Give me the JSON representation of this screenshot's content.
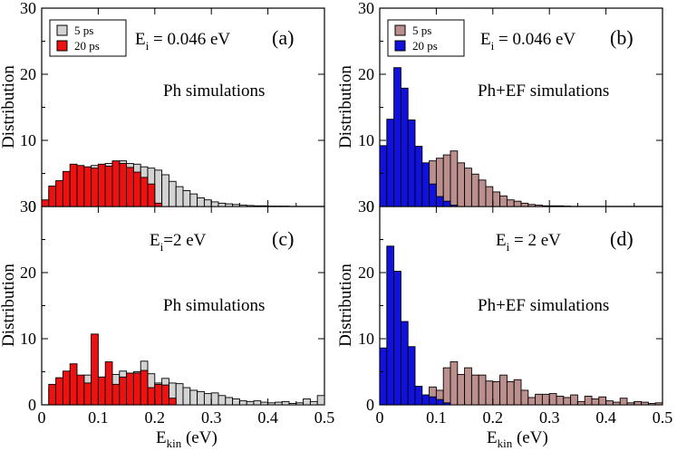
{
  "figure": {
    "ylabel": "Distribution",
    "xlabel_main": "E",
    "xlabel_sub": "kin",
    "xlabel_unit": " (eV)",
    "xticks": [
      "0",
      "0.1",
      "0.2",
      "0.3",
      "0.4",
      "0.5"
    ],
    "yticks_top": [
      "0",
      "10",
      "20",
      "30"
    ],
    "yticks_bottom": [
      "0",
      "10",
      "20",
      "30"
    ]
  },
  "chart_data": [
    {
      "type": "bar",
      "panel_label": "(a)",
      "energy_main": "E",
      "energy_sub": "i",
      "energy_value": " = 0.046 eV",
      "sim_label": "Ph simulations",
      "xlim": [
        0,
        0.5
      ],
      "ylim": [
        0,
        30
      ],
      "bin_width": 0.0125,
      "bins_start": [
        0.0,
        0.0125,
        0.025,
        0.0375,
        0.05,
        0.0625,
        0.075,
        0.0875,
        0.1,
        0.1125,
        0.125,
        0.1375,
        0.15,
        0.1625,
        0.175,
        0.1875,
        0.2,
        0.2125,
        0.225,
        0.2375,
        0.25,
        0.2625,
        0.275,
        0.2875,
        0.3,
        0.3125,
        0.325,
        0.3375,
        0.35,
        0.3625,
        0.375,
        0.3875,
        0.4,
        0.4125,
        0.425,
        0.4375,
        0.45,
        0.4625,
        0.475,
        0.4875
      ],
      "legend": [
        {
          "label": "5 ps",
          "color": "#d3d3d3"
        },
        {
          "label": "20 ps",
          "color": "#ee1111"
        }
      ],
      "series": [
        {
          "name": "5 ps",
          "color": "#d3d3d3",
          "values": [
            0.8,
            2.5,
            3.4,
            4.2,
            5.0,
            5.4,
            5.8,
            6.2,
            6.3,
            6.5,
            6.6,
            6.9,
            6.5,
            6.4,
            6.0,
            5.8,
            5.5,
            4.8,
            3.8,
            3.0,
            2.4,
            1.9,
            1.3,
            1.0,
            0.7,
            0.5,
            0.4,
            0.3,
            0.2,
            0.15,
            0.1,
            0.1,
            0.05,
            0.05,
            0.05,
            0,
            0,
            0,
            0,
            0
          ]
        },
        {
          "name": "20 ps",
          "color": "#ee1111",
          "values": [
            1.0,
            3.1,
            3.9,
            5.3,
            6.4,
            6.2,
            6.0,
            5.8,
            6.4,
            6.1,
            6.9,
            6.5,
            5.9,
            5.2,
            4.4,
            3.4,
            0.5,
            0,
            0,
            0,
            0,
            0,
            0,
            0,
            0,
            0,
            0,
            0,
            0,
            0,
            0,
            0,
            0,
            0,
            0,
            0,
            0,
            0,
            0,
            0
          ]
        }
      ]
    },
    {
      "type": "bar",
      "panel_label": "(b)",
      "energy_main": "E",
      "energy_sub": "i",
      "energy_value": " = 0.046 eV",
      "sim_label": "Ph+EF simulations",
      "xlim": [
        0,
        0.5
      ],
      "ylim": [
        0,
        30
      ],
      "bin_width": 0.0125,
      "bins_start": [
        0.0,
        0.0125,
        0.025,
        0.0375,
        0.05,
        0.0625,
        0.075,
        0.0875,
        0.1,
        0.1125,
        0.125,
        0.1375,
        0.15,
        0.1625,
        0.175,
        0.1875,
        0.2,
        0.2125,
        0.225,
        0.2375,
        0.25,
        0.2625,
        0.275,
        0.2875,
        0.3,
        0.3125,
        0.325,
        0.3375,
        0.35,
        0.3625,
        0.375,
        0.3875,
        0.4,
        0.4125,
        0.425,
        0.4375,
        0.45,
        0.4625,
        0.475,
        0.4875
      ],
      "legend": [
        {
          "label": "5 ps",
          "color": "#bc8f8f"
        },
        {
          "label": "20 ps",
          "color": "#1111dd"
        }
      ],
      "series": [
        {
          "name": "5 ps",
          "color": "#bc8f8f",
          "values": [
            0.3,
            1.0,
            2.2,
            3.2,
            4.0,
            5.4,
            5.8,
            6.9,
            7.3,
            7.8,
            8.4,
            6.6,
            5.8,
            4.9,
            4.0,
            3.0,
            2.2,
            1.6,
            1.0,
            0.8,
            0.5,
            0.3,
            0.2,
            0.1,
            0.1,
            0.1,
            0.05,
            0,
            0,
            0,
            0,
            0,
            0,
            0,
            0,
            0,
            0,
            0,
            0,
            0
          ]
        },
        {
          "name": "20 ps",
          "color": "#1111dd",
          "values": [
            9.2,
            13.2,
            21.0,
            17.9,
            13.1,
            9.1,
            6.6,
            3.4,
            1.5,
            0.8,
            0.2,
            0,
            0,
            0,
            0,
            0,
            0,
            0,
            0,
            0,
            0,
            0,
            0,
            0,
            0,
            0,
            0,
            0,
            0,
            0,
            0,
            0,
            0,
            0,
            0,
            0,
            0,
            0,
            0,
            0
          ]
        }
      ]
    },
    {
      "type": "bar",
      "panel_label": "(c)",
      "energy_main": "E",
      "energy_sub": "i",
      "energy_value": "=2 eV",
      "sim_label": "Ph simulations",
      "xlim": [
        0,
        0.5
      ],
      "ylim": [
        0,
        30
      ],
      "bin_width": 0.0125,
      "bins_start": [
        0.0,
        0.0125,
        0.025,
        0.0375,
        0.05,
        0.0625,
        0.075,
        0.0875,
        0.1,
        0.1125,
        0.125,
        0.1375,
        0.15,
        0.1625,
        0.175,
        0.1875,
        0.2,
        0.2125,
        0.225,
        0.2375,
        0.25,
        0.2625,
        0.275,
        0.2875,
        0.3,
        0.3125,
        0.325,
        0.3375,
        0.35,
        0.3625,
        0.375,
        0.3875,
        0.4,
        0.4125,
        0.425,
        0.4375,
        0.45,
        0.4625,
        0.475,
        0.4875
      ],
      "series": [
        {
          "name": "5 ps",
          "color": "#d3d3d3",
          "values": [
            0,
            2.6,
            3.1,
            4.0,
            3.6,
            4.2,
            4.5,
            4.0,
            4.2,
            4.4,
            4.6,
            5.1,
            4.6,
            5.0,
            6.6,
            4.7,
            3.3,
            4.0,
            3.3,
            3.2,
            2.6,
            2.2,
            2.0,
            1.7,
            1.8,
            1.4,
            1.1,
            0.9,
            0.6,
            0.5,
            0.6,
            0.4,
            0.3,
            0.4,
            0.5,
            0.2,
            0.3,
            0.9,
            0.5,
            1.4
          ]
        },
        {
          "name": "20 ps",
          "color": "#ee1111",
          "values": [
            0,
            3.1,
            4.1,
            5.1,
            6.2,
            4.5,
            3.3,
            10.7,
            4.2,
            6.5,
            3.1,
            4.2,
            4.8,
            4.8,
            5.2,
            2.6,
            3.1,
            3.0,
            1.0,
            0,
            0,
            0,
            0,
            0,
            0,
            0,
            0,
            0,
            0,
            0,
            0,
            0,
            0,
            0,
            0,
            0,
            0,
            0,
            0,
            0
          ]
        }
      ]
    },
    {
      "type": "bar",
      "panel_label": "(d)",
      "energy_main": "E",
      "energy_sub": "i",
      "energy_value": " = 2 eV",
      "sim_label": "Ph+EF simulations",
      "xlim": [
        0,
        0.5
      ],
      "ylim": [
        0,
        30
      ],
      "bin_width": 0.0125,
      "bins_start": [
        0.0,
        0.0125,
        0.025,
        0.0375,
        0.05,
        0.0625,
        0.075,
        0.0875,
        0.1,
        0.1125,
        0.125,
        0.1375,
        0.15,
        0.1625,
        0.175,
        0.1875,
        0.2,
        0.2125,
        0.225,
        0.2375,
        0.25,
        0.2625,
        0.275,
        0.2875,
        0.3,
        0.3125,
        0.325,
        0.3375,
        0.35,
        0.3625,
        0.375,
        0.3875,
        0.4,
        0.4125,
        0.425,
        0.4375,
        0.45,
        0.4625,
        0.475,
        0.4875
      ],
      "series": [
        {
          "name": "5 ps",
          "color": "#bc8f8f",
          "values": [
            0,
            0,
            0,
            0,
            0,
            0,
            0,
            2.7,
            2.2,
            5.6,
            6.5,
            4.6,
            5.6,
            4.5,
            4.5,
            3.6,
            3.5,
            4.5,
            3.5,
            3.8,
            2.2,
            1.1,
            1.6,
            1.6,
            1.7,
            1.3,
            1.1,
            1.5,
            0.5,
            1.3,
            0.9,
            1.2,
            0.6,
            0.4,
            1.0,
            0.3,
            0.5,
            0.4,
            0.2,
            0.3
          ]
        },
        {
          "name": "20 ps",
          "color": "#1111dd",
          "values": [
            8.6,
            24.0,
            20.2,
            12.6,
            8.8,
            2.8,
            1.5,
            1.2,
            0.8,
            0.3,
            0,
            0,
            0,
            0,
            0,
            0,
            0,
            0,
            0,
            0,
            0,
            0,
            0,
            0,
            0,
            0,
            0,
            0,
            0,
            0,
            0,
            0,
            0,
            0,
            0,
            0,
            0,
            0,
            0,
            0
          ]
        }
      ]
    }
  ]
}
